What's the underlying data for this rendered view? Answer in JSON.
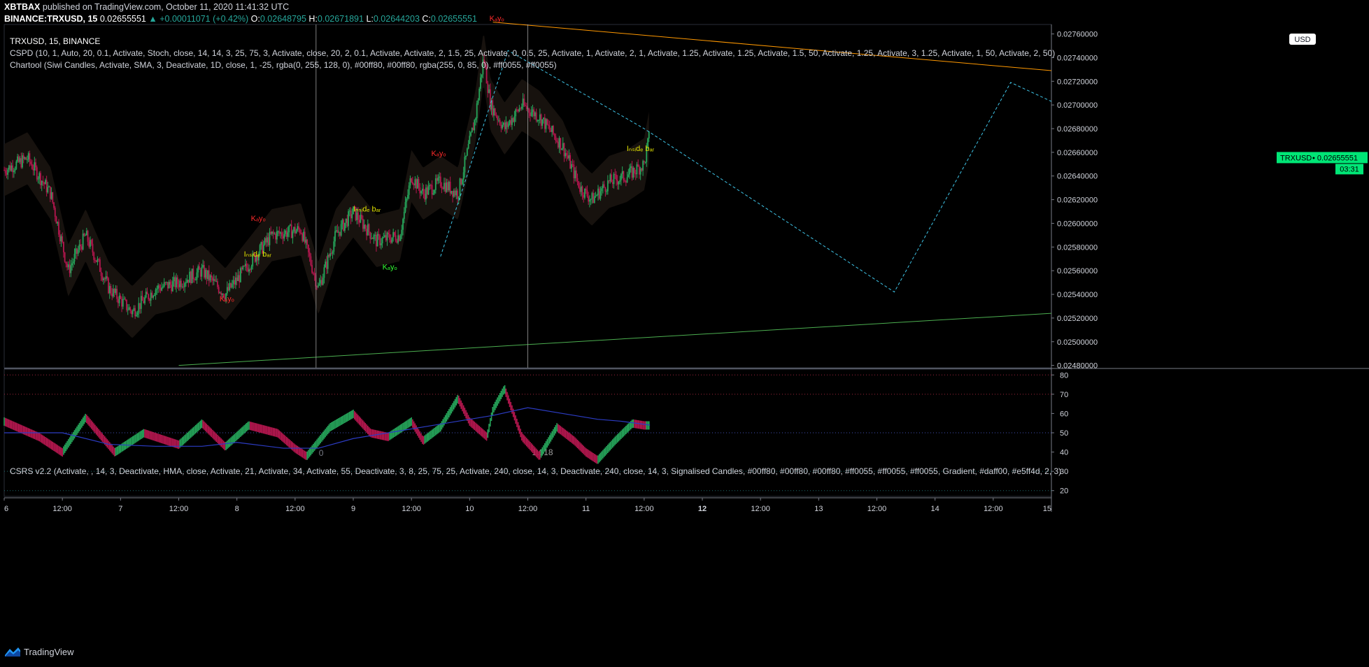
{
  "header": {
    "user": "XBTBAX",
    "published": "published on TradingView.com, October 11, 2020 11:41:32 UTC",
    "symbol_line": "BINANCE:TRXUSD, 15",
    "last": "0.02655551",
    "change": "▲ +0.00011071 (+0.42%)",
    "o_label": "O:",
    "o": "0.02648795",
    "h_label": "H:",
    "h": "0.02671891",
    "l_label": "L:",
    "l": "0.02644203",
    "c_label": "C:",
    "c": "0.02655551"
  },
  "legends": {
    "symbol": "TRXUSD, 15, BINANCE",
    "cspd": "CSPD (10, 1, Auto, 20, 0.1, Activate, Stoch, close, 14, 14, 3, 25, 75, 3, Activate, close, 20, 2, 0.1, Activate, Activate, 2, 1.5, 25, Activate, 0, 0.5, 25, Activate, 1, Activate, 2, 1, Activate, 1.25, Activate, 1.25, Activate, 1.5, 50, Activate, 1.25, Activate, 3, 1.25, Activate, 1, 50, Activate, 2, 50)",
    "chartool": "Chartool (Siwi Candles, Activate, SMA, 3, Deactivate, 1D, close, 1, -25, rgba(0, 255, 128, 0), #00ff80, #00ff80, rgba(255, 0, 85, 0), #ff0055, #ff0055)",
    "csrs": "CSRS v2.2 (Activate, , 14, 3, Deactivate, HMA, close, Activate, 21, Activate, 34, Activate, 55, Deactivate, 3, 8, 25, 75, 25, Activate, 240, close, 14, 3, Deactivate, 240, close, 14, 3, Signalised Candles, #00ff80, #00ff80, #00ff80, #ff0055, #ff0055, #ff0055, Gradient, #daff00, #e5ff4d, 2, 3)"
  },
  "price_axis": {
    "currency": "USD",
    "ticks": [
      "0.02760000",
      "0.02740000",
      "0.02720000",
      "0.02700000",
      "0.02680000",
      "0.02660000",
      "0.02640000",
      "0.02620000",
      "0.02600000",
      "0.02580000",
      "0.02560000",
      "0.02540000",
      "0.02520000",
      "0.02500000",
      "0.02480000"
    ],
    "tag_symbol": "TRXUSD",
    "tag_price": "0.02655551",
    "countdown": "03:31"
  },
  "osc_axis": {
    "ticks": [
      "80",
      "70",
      "60",
      "50",
      "40",
      "30",
      "20"
    ]
  },
  "time_axis": {
    "ticks": [
      {
        "label": "6",
        "bold": false
      },
      {
        "label": "12:00",
        "bold": false
      },
      {
        "label": "7",
        "bold": false
      },
      {
        "label": "12:00",
        "bold": false
      },
      {
        "label": "8",
        "bold": false
      },
      {
        "label": "12:00",
        "bold": false
      },
      {
        "label": "9",
        "bold": false
      },
      {
        "label": "12:00",
        "bold": false
      },
      {
        "label": "10",
        "bold": false
      },
      {
        "label": "12:00",
        "bold": false
      },
      {
        "label": "11",
        "bold": false
      },
      {
        "label": "12:00",
        "bold": false
      },
      {
        "label": "12",
        "bold": true
      },
      {
        "label": "12:00",
        "bold": false
      },
      {
        "label": "13",
        "bold": false
      },
      {
        "label": "12:00",
        "bold": false
      },
      {
        "label": "14",
        "bold": false
      },
      {
        "label": "12:00",
        "bold": false
      },
      {
        "label": "15",
        "bold": false
      }
    ]
  },
  "fib": {
    "label0": "0",
    "label1": "1.618"
  },
  "annotations": [
    {
      "text": "Kₐyₒ",
      "color": "#ff2a2a",
      "x_day": 10.17,
      "price": 0.02771
    },
    {
      "text": "Kₐyₒ",
      "color": "#ff2a2a",
      "x_day": 9.67,
      "price": 0.02657
    },
    {
      "text": "Kₐyₒ",
      "color": "#ff2a2a",
      "x_day": 8.12,
      "price": 0.02602
    },
    {
      "text": "Kₐyₒ",
      "color": "#ff2a2a",
      "x_day": 7.85,
      "price": 0.02534
    },
    {
      "text": "Iₙₛᵢdₑ bₐᵣ",
      "color": "#e0e000",
      "x_day": 8.06,
      "price": 0.02572
    },
    {
      "text": "Iₙₛᵢdₑ bₐᵣ",
      "color": "#e0e000",
      "x_day": 9.0,
      "price": 0.0261
    },
    {
      "text": "Iₙₛᵢdₑ bₐᵣ",
      "color": "#e0e000",
      "x_day": 11.35,
      "price": 0.02661
    },
    {
      "text": "Kₐyₒ",
      "color": "#33ff33",
      "x_day": 9.25,
      "price": 0.02561
    }
  ],
  "chart_data": [
    {
      "type": "candlestick",
      "symbol": "TRXUSD",
      "exchange": "BINANCE",
      "interval": "15",
      "x_unit": "day of October 2020 (UTC)",
      "xlim": [
        6.0,
        15.0
      ],
      "ylim": [
        0.02478,
        0.02768
      ],
      "close_path": {
        "x": [
          6.0,
          6.2,
          6.4,
          6.55,
          6.7,
          6.9,
          7.1,
          7.3,
          7.5,
          7.7,
          7.9,
          8.1,
          8.3,
          8.55,
          8.7,
          8.85,
          9.0,
          9.2,
          9.4,
          9.5,
          9.6,
          9.75,
          9.9,
          10.05,
          10.12,
          10.18,
          10.3,
          10.45,
          10.6,
          10.8,
          10.95,
          11.05,
          11.2,
          11.35,
          11.5,
          11.55
        ],
        "y": [
          0.02645,
          0.02655,
          0.02625,
          0.0256,
          0.0259,
          0.02545,
          0.02525,
          0.02545,
          0.0255,
          0.0256,
          0.0254,
          0.02565,
          0.0259,
          0.02595,
          0.02545,
          0.0259,
          0.0261,
          0.02585,
          0.0259,
          0.0264,
          0.02625,
          0.02635,
          0.02625,
          0.0269,
          0.0274,
          0.027,
          0.0268,
          0.027,
          0.0269,
          0.02665,
          0.0263,
          0.0262,
          0.02635,
          0.0264,
          0.0265,
          0.02677
        ]
      },
      "trendlines": [
        {
          "name": "orange",
          "color": "#ff9800",
          "x": [
            10.2,
            15.0
          ],
          "y": [
            0.0277,
            0.02729
          ]
        },
        {
          "name": "green",
          "color": "#4caf50",
          "x": [
            7.5,
            15.0
          ],
          "y": [
            0.0248,
            0.02524
          ]
        },
        {
          "name": "cyan-dashed",
          "color": "#3fc5e8",
          "dashed": true,
          "x": [
            9.75,
            10.33,
            11.5,
            13.65,
            14.65,
            15.0
          ],
          "y": [
            0.02572,
            0.02746,
            0.0268,
            0.02542,
            0.02719,
            0.02703
          ]
        }
      ],
      "fib_lines_x": [
        8.68,
        10.5
      ]
    },
    {
      "type": "line",
      "name": "CSRS v2.2",
      "ylim": [
        17,
        83
      ],
      "levels": [
        80,
        70,
        50,
        30,
        20
      ],
      "series": [
        {
          "name": "rsi",
          "x": [
            6.0,
            6.3,
            6.5,
            6.7,
            6.95,
            7.2,
            7.5,
            7.7,
            7.9,
            8.1,
            8.35,
            8.5,
            8.6,
            8.8,
            9.0,
            9.15,
            9.3,
            9.5,
            9.6,
            9.75,
            9.9,
            10.0,
            10.15,
            10.2,
            10.3,
            10.45,
            10.6,
            10.75,
            10.9,
            11.0,
            11.1,
            11.25,
            11.4,
            11.5,
            11.55
          ],
          "y": [
            58,
            50,
            42,
            60,
            42,
            52,
            46,
            57,
            45,
            56,
            52,
            44,
            40,
            55,
            62,
            52,
            50,
            58,
            48,
            55,
            70,
            58,
            50,
            64,
            75,
            50,
            40,
            55,
            48,
            42,
            38,
            48,
            57,
            56,
            56
          ]
        },
        {
          "name": "signal",
          "x": [
            6.0,
            6.5,
            6.9,
            7.3,
            7.7,
            8.0,
            8.4,
            8.7,
            9.0,
            9.4,
            9.8,
            10.2,
            10.5,
            10.8,
            11.1,
            11.3,
            11.55
          ],
          "y": [
            50,
            50,
            44,
            43,
            43,
            45,
            42,
            42,
            47,
            51,
            55,
            59,
            63,
            60,
            57,
            56,
            54
          ]
        }
      ]
    }
  ]
}
